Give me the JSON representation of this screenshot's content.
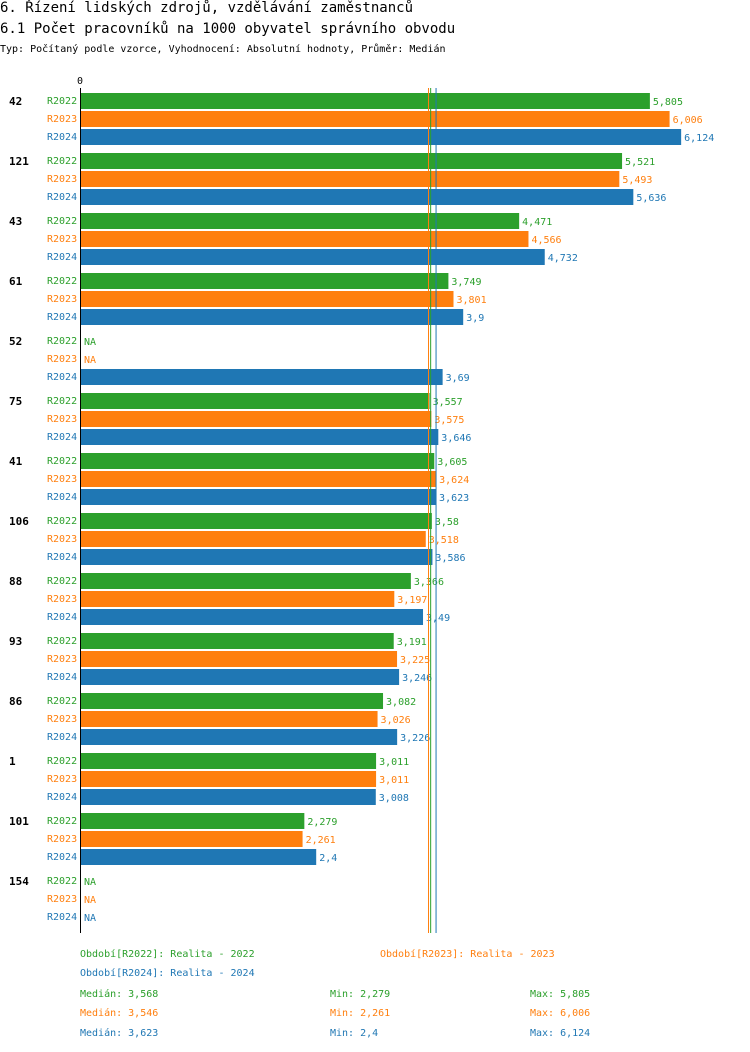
{
  "title": "6. Řízení lidských zdrojů, vzdělávání zaměstnanců",
  "subtitle": "6.1 Počet pracovníků na 1000 obyvatel správního obvodu",
  "info": "Typ: Počítaný podle vzorce, Vyhodnocení: Absolutní hodnoty, Průměr: Medián",
  "colors": {
    "R2022": "#2ca02c",
    "R2023": "#ff7f0e",
    "R2024": "#1f77b4"
  },
  "chart_data": {
    "type": "bar",
    "orientation": "horizontal",
    "axis_zero_label": "0",
    "xlim": [
      0,
      6.124
    ],
    "series_names": [
      "R2022",
      "R2023",
      "R2024"
    ],
    "groups": [
      {
        "label": "42",
        "values": [
          5.805,
          6.006,
          6.124
        ],
        "labels": [
          "5,805",
          "6,006",
          "6,124"
        ]
      },
      {
        "label": "121",
        "values": [
          5.521,
          5.493,
          5.636
        ],
        "labels": [
          "5,521",
          "5,493",
          "5,636"
        ]
      },
      {
        "label": "43",
        "values": [
          4.471,
          4.566,
          4.732
        ],
        "labels": [
          "4,471",
          "4,566",
          "4,732"
        ]
      },
      {
        "label": "61",
        "values": [
          3.749,
          3.801,
          3.9
        ],
        "labels": [
          "3,749",
          "3,801",
          "3,9"
        ]
      },
      {
        "label": "52",
        "values": [
          null,
          null,
          3.69
        ],
        "labels": [
          "NA",
          "NA",
          "3,69"
        ]
      },
      {
        "label": "75",
        "values": [
          3.557,
          3.575,
          3.646
        ],
        "labels": [
          "3,557",
          "3,575",
          "3,646"
        ]
      },
      {
        "label": "41",
        "values": [
          3.605,
          3.624,
          3.623
        ],
        "labels": [
          "3,605",
          "3,624",
          "3,623"
        ]
      },
      {
        "label": "106",
        "values": [
          3.58,
          3.518,
          3.586
        ],
        "labels": [
          "3,58",
          "3,518",
          "3,586"
        ]
      },
      {
        "label": "88",
        "values": [
          3.366,
          3.197,
          3.49
        ],
        "labels": [
          "3,366",
          "3,197",
          "3,49"
        ]
      },
      {
        "label": "93",
        "values": [
          3.191,
          3.225,
          3.246
        ],
        "labels": [
          "3,191",
          "3,225",
          "3,246"
        ]
      },
      {
        "label": "86",
        "values": [
          3.082,
          3.026,
          3.226
        ],
        "labels": [
          "3,082",
          "3,026",
          "3,226"
        ]
      },
      {
        "label": "1",
        "values": [
          3.011,
          3.011,
          3.008
        ],
        "labels": [
          "3,011",
          "3,011",
          "3,008"
        ]
      },
      {
        "label": "101",
        "values": [
          2.279,
          2.261,
          2.4
        ],
        "labels": [
          "2,279",
          "2,261",
          "2,4"
        ]
      },
      {
        "label": "154",
        "values": [
          null,
          null,
          null
        ],
        "labels": [
          "NA",
          "NA",
          "NA"
        ]
      }
    ],
    "medians": [
      3.568,
      3.546,
      3.623
    ]
  },
  "legend": {
    "r2022": "Období[R2022]: Realita - 2022",
    "r2023": "Období[R2023]: Realita - 2023",
    "r2024": "Období[R2024]: Realita - 2024",
    "stats": [
      {
        "median": "Medián: 3,568",
        "min": "Min: 2,279",
        "max": "Max: 5,805"
      },
      {
        "median": "Medián: 3,546",
        "min": "Min: 2,261",
        "max": "Max: 6,006"
      },
      {
        "median": "Medián: 3,623",
        "min": "Min: 2,4",
        "max": "Max: 6,124"
      }
    ]
  }
}
